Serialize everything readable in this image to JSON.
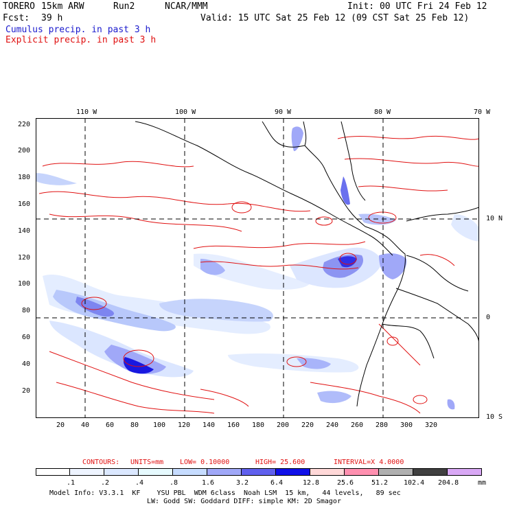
{
  "header": {
    "model": "TORERO",
    "resolution": "15km ARW",
    "run": "Run2",
    "org": "NCAR/MMM",
    "init": "Init: 00 UTC Fri 24 Feb 12",
    "fcst_label": "Fcst:",
    "fcst_value": "39 h",
    "valid": "Valid: 15 UTC Sat 25 Feb 12 (09 CST Sat 25 Feb 12)"
  },
  "legend_lines": {
    "cumulus": "Cumulus precip. in past 3 h",
    "explicit": "Explicit precip. in past 3 h"
  },
  "axes": {
    "lon_labels": [
      "110 W",
      "100 W",
      "90 W",
      "80 W",
      "70 W"
    ],
    "lat_labels": [
      "10 N",
      "0",
      "10 S"
    ],
    "y_ticks": [
      "220",
      "200",
      "180",
      "160",
      "140",
      "120",
      "100",
      "80",
      "60",
      "40",
      "20"
    ],
    "x_ticks": [
      "20",
      "40",
      "60",
      "80",
      "100",
      "120",
      "140",
      "160",
      "180",
      "200",
      "220",
      "240",
      "260",
      "280",
      "300",
      "320"
    ]
  },
  "contours": {
    "label": "CONTOURS:",
    "units": "UNITS=mm",
    "low": "LOW= 0.10000",
    "high": "HIGH= 25.600",
    "interval": "INTERVAL=X 4.0000"
  },
  "colorbar": {
    "labels": [
      ".1",
      ".2",
      ".4",
      ".8",
      "1.6",
      "3.2",
      "6.4",
      "12.8",
      "25.6",
      "51.2",
      "102.4",
      "204.8"
    ],
    "unit": "mm",
    "colors": [
      "#ffffff",
      "#eef4ff",
      "#dbe8ff",
      "#e6fafe",
      "#c6dcff",
      "#a0a8f8",
      "#6060ee",
      "#1010e8",
      "#ffd8d8",
      "#ff90b0",
      "#b0b0b0",
      "#404040",
      "#d9a8f5"
    ]
  },
  "footer": {
    "line1": "Model Info: V3.3.1  KF    YSU PBL  WDM 6class  Noah LSM  15 km,   44 levels,   89 sec",
    "line2": "LW: Godd SW: Goddard DIFF: simple KM: 2D Smagor"
  }
}
